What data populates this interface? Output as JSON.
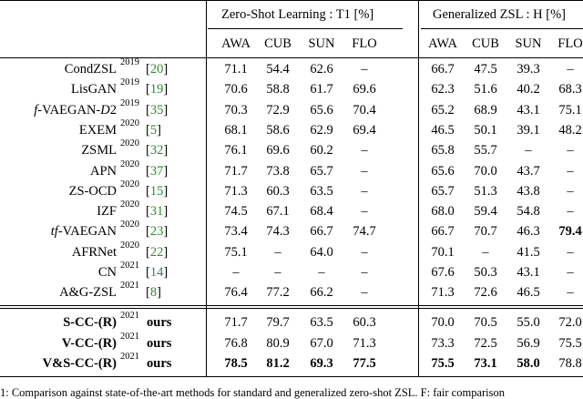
{
  "header": {
    "group_zsl": "Zero-Shot Learning : T1 [%]",
    "group_gzsl": "Generalized ZSL : H [%]",
    "columns": [
      "AWA",
      "CUB",
      "SUN",
      "FLO"
    ]
  },
  "rows": [
    {
      "method": "CondZSL",
      "year": "2019",
      "ref": "20",
      "zsl": [
        "71.1",
        "54.4",
        "62.6",
        "–"
      ],
      "gzsl": [
        "66.7",
        "47.5",
        "39.3",
        "–"
      ]
    },
    {
      "method": "LisGAN",
      "year": "2019",
      "ref": "19",
      "zsl": [
        "70.6",
        "58.8",
        "61.7",
        "69.6"
      ],
      "gzsl": [
        "62.3",
        "51.6",
        "40.2",
        "68.3"
      ]
    },
    {
      "method": "f-VAEGAN-D2",
      "year": "2019",
      "ref": "35",
      "zsl": [
        "70.3",
        "72.9",
        "65.6",
        "70.4"
      ],
      "gzsl": [
        "65.2",
        "68.9",
        "43.1",
        "75.1"
      ]
    },
    {
      "method": "EXEM",
      "year": "2020",
      "ref": "5",
      "zsl": [
        "68.1",
        "58.6",
        "62.9",
        "69.4"
      ],
      "gzsl": [
        "46.5",
        "50.1",
        "39.1",
        "48.2"
      ]
    },
    {
      "method": "ZSML",
      "year": "2020",
      "ref": "32",
      "zsl": [
        "76.1",
        "69.6",
        "60.2",
        "–"
      ],
      "gzsl": [
        "65.8",
        "55.7",
        "–",
        "–"
      ]
    },
    {
      "method": "APN",
      "year": "2020",
      "ref": "37",
      "zsl": [
        "71.7",
        "73.8",
        "65.7",
        "–"
      ],
      "gzsl": [
        "65.6",
        "70.0",
        "43.7",
        "–"
      ]
    },
    {
      "method": "ZS-OCD",
      "year": "2020",
      "ref": "15",
      "zsl": [
        "71.3",
        "60.3",
        "63.5",
        "–"
      ],
      "gzsl": [
        "65.7",
        "51.3",
        "43.8",
        "–"
      ]
    },
    {
      "method": "IZF",
      "year": "2020",
      "ref": "31",
      "zsl": [
        "74.5",
        "67.1",
        "68.4",
        "–"
      ],
      "gzsl": [
        "68.0",
        "59.4",
        "54.8",
        "–"
      ]
    },
    {
      "method": "tf-VAEGAN",
      "year": "2020",
      "ref": "23",
      "zsl": [
        "73.4",
        "74.3",
        "66.7",
        "74.7"
      ],
      "gzsl": [
        "66.7",
        "70.7",
        "46.3",
        "79.4"
      ]
    },
    {
      "method": "AFRNet",
      "year": "2020",
      "ref": "22",
      "zsl": [
        "75.1",
        "–",
        "64.0",
        "–"
      ],
      "gzsl": [
        "70.1",
        "–",
        "41.5",
        "–"
      ]
    },
    {
      "method": "CN",
      "year": "2021",
      "ref": "14",
      "zsl": [
        "–",
        "–",
        "–",
        "–"
      ],
      "gzsl": [
        "67.6",
        "50.3",
        "43.1",
        "–"
      ]
    },
    {
      "method": "A&G-ZSL",
      "year": "2021",
      "ref": "8",
      "zsl": [
        "76.4",
        "77.2",
        "66.2",
        "–"
      ],
      "gzsl": [
        "71.3",
        "72.6",
        "46.5",
        "–"
      ]
    }
  ],
  "ours": [
    {
      "method": "S-CC-(R)",
      "year": "2021",
      "tag": "ours",
      "zsl": [
        "71.7",
        "79.7",
        "63.5",
        "60.3"
      ],
      "gzsl": [
        "70.0",
        "70.5",
        "55.0",
        "72.0"
      ]
    },
    {
      "method": "V-CC-(R)",
      "year": "2021",
      "tag": "ours",
      "zsl": [
        "76.8",
        "80.9",
        "67.0",
        "71.3"
      ],
      "gzsl": [
        "73.3",
        "72.5",
        "56.9",
        "75.5"
      ]
    },
    {
      "method": "V&S-CC-(R)",
      "year": "2021",
      "tag": "ours",
      "zsl": [
        "78.5",
        "81.2",
        "69.3",
        "77.5"
      ],
      "gzsl": [
        "75.5",
        "73.1",
        "58.0",
        "78.8"
      ]
    }
  ],
  "bold_cells": [
    "8.gzsl.3",
    "o2.zsl.0",
    "o2.zsl.1",
    "o2.zsl.2",
    "o2.zsl.3",
    "o2.gzsl.0",
    "o2.gzsl.1",
    "o2.gzsl.2"
  ],
  "caption": "1: Comparison against state-of-the-art methods for standard and generalized zero-shot ZSL. F: fair comparison"
}
